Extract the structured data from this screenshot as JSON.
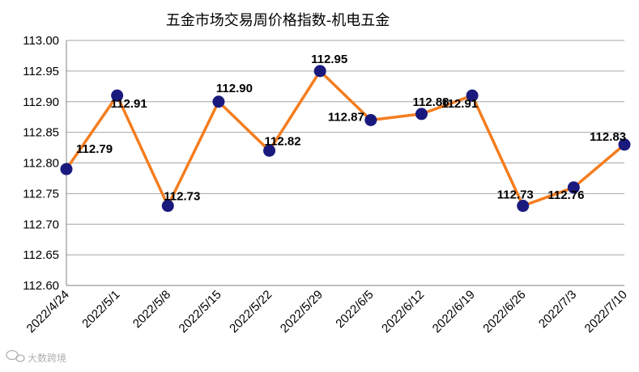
{
  "chart_data": {
    "type": "line",
    "title": "五金市场交易周价格指数-机电五金",
    "xlabel": "",
    "ylabel": "",
    "categories": [
      "2022/4/24",
      "2022/5/1",
      "2022/5/8",
      "2022/5/15",
      "2022/5/22",
      "2022/5/29",
      "2022/6/5",
      "2022/6/12",
      "2022/6/19",
      "2022/6/26",
      "2022/7/3",
      "2022/7/10"
    ],
    "series": [
      {
        "values": [
          112.79,
          112.91,
          112.73,
          112.9,
          112.82,
          112.95,
          112.87,
          112.88,
          112.91,
          112.73,
          112.76,
          112.83
        ]
      }
    ],
    "data_labels": [
      "112.79",
      "112.91",
      "112.73",
      "112.90",
      "112.82",
      "112.95",
      "112.87",
      "112.88",
      "112.91",
      "112.73",
      "112.76",
      "112.83"
    ],
    "ylim": [
      112.6,
      113.0
    ],
    "yticks": [
      "112.60",
      "112.65",
      "112.70",
      "112.75",
      "112.80",
      "112.85",
      "112.90",
      "112.95",
      "113.00"
    ],
    "grid": true,
    "legend": "none",
    "colors": {
      "line": "#f47d1f",
      "marker": "#1a1a7e",
      "grid": "#a6a6a6"
    }
  },
  "watermark": {
    "text": "大数跨境",
    "icon": "chat-bubble-icon"
  }
}
